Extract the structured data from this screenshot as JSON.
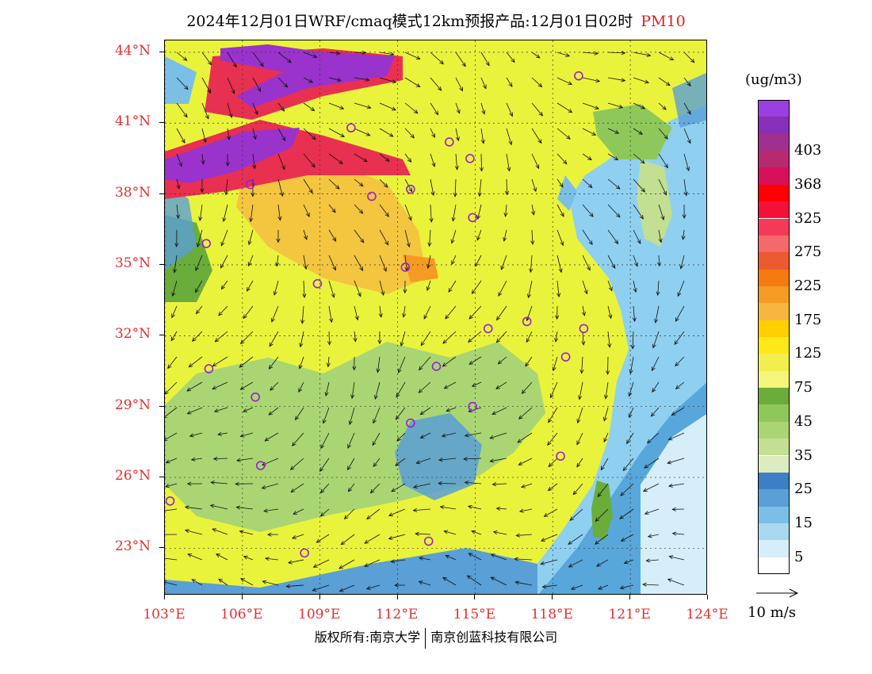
{
  "header": {
    "title": "2024年12月01日WRF/cmaq模式12km预报产品:12月01日02时",
    "pollutant": "PM10"
  },
  "map": {
    "lat_labels": [
      "44°N",
      "41°N",
      "38°N",
      "35°N",
      "32°N",
      "29°N",
      "26°N",
      "23°N"
    ],
    "lon_labels": [
      "103°E",
      "106°E",
      "109°E",
      "112°E",
      "115°E",
      "118°E",
      "121°E",
      "124°E"
    ],
    "lat_range": [
      21,
      44.5
    ],
    "lon_range": [
      103,
      124
    ],
    "colors": {
      "land_base": "#eaf33c",
      "sea": "#8fd0f0",
      "deep_sea": "#4a9cd6",
      "extreme": "#9933cc",
      "high": "#e83050",
      "orange": "#f0a030",
      "green": "#88c040"
    },
    "city_markers": [
      {
        "lon": 119.0,
        "lat": 43.0
      },
      {
        "lon": 110.2,
        "lat": 40.8
      },
      {
        "lon": 114.0,
        "lat": 40.2
      },
      {
        "lon": 114.8,
        "lat": 39.5
      },
      {
        "lon": 106.3,
        "lat": 38.4
      },
      {
        "lon": 111.0,
        "lat": 37.9
      },
      {
        "lon": 112.5,
        "lat": 38.2
      },
      {
        "lon": 114.9,
        "lat": 37.0
      },
      {
        "lon": 104.6,
        "lat": 35.9
      },
      {
        "lon": 112.3,
        "lat": 34.9
      },
      {
        "lon": 108.9,
        "lat": 34.2
      },
      {
        "lon": 115.5,
        "lat": 32.3
      },
      {
        "lon": 117.0,
        "lat": 32.6
      },
      {
        "lon": 119.2,
        "lat": 32.3
      },
      {
        "lon": 104.7,
        "lat": 30.6
      },
      {
        "lon": 118.5,
        "lat": 31.1
      },
      {
        "lon": 113.5,
        "lat": 30.7
      },
      {
        "lon": 106.5,
        "lat": 29.4
      },
      {
        "lon": 114.9,
        "lat": 29.0
      },
      {
        "lon": 112.5,
        "lat": 28.3
      },
      {
        "lon": 106.7,
        "lat": 26.5
      },
      {
        "lon": 118.3,
        "lat": 26.9
      },
      {
        "lon": 103.2,
        "lat": 25.0
      },
      {
        "lon": 108.4,
        "lat": 22.8
      },
      {
        "lon": 113.2,
        "lat": 23.3
      }
    ]
  },
  "colorbar": {
    "units": "(ug/m3)",
    "colors": [
      "#ffffff",
      "#d6eefa",
      "#a8d8f0",
      "#7cbfe6",
      "#5a9fd6",
      "#3c7fc4",
      "#dcebc0",
      "#c2df92",
      "#a9d672",
      "#8fc85a",
      "#6aad3a",
      "#f5f57a",
      "#f2ee50",
      "#ffe818",
      "#ffd000",
      "#f7b640",
      "#f59a22",
      "#f57a10",
      "#ec5a30",
      "#f46a6a",
      "#f53a58",
      "#f5103a",
      "#ff0000",
      "#d8105a",
      "#b82a70",
      "#a03090",
      "#8830b8",
      "#9a40e0"
    ],
    "labels": [
      {
        "text": "5",
        "index": 1
      },
      {
        "text": "15",
        "index": 3
      },
      {
        "text": "25",
        "index": 5
      },
      {
        "text": "35",
        "index": 7
      },
      {
        "text": "45",
        "index": 9
      },
      {
        "text": "75",
        "index": 11
      },
      {
        "text": "125",
        "index": 13
      },
      {
        "text": "175",
        "index": 15
      },
      {
        "text": "225",
        "index": 17
      },
      {
        "text": "275",
        "index": 19
      },
      {
        "text": "325",
        "index": 21
      },
      {
        "text": "368",
        "index": 23
      },
      {
        "text": "403",
        "index": 25
      }
    ]
  },
  "wind_key": {
    "label": "10 m/s"
  },
  "footer": {
    "copyright_left": "版权所有:南京大学",
    "copyright_right": "南京创蓝科技有限公司"
  }
}
